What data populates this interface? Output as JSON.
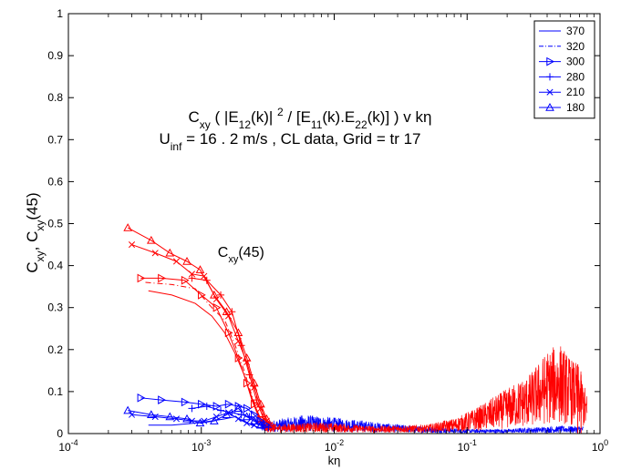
{
  "chart_data": {
    "type": "line",
    "x_scale": "log",
    "xlim": [
      0.0001,
      1
    ],
    "ylim": [
      0,
      1
    ],
    "xlabel": "kη",
    "ylabel": {
      "parts": [
        {
          "t": "C",
          "s": "n"
        },
        {
          "t": "xy",
          "s": "sub"
        },
        {
          "t": ", C",
          "s": "n"
        },
        {
          "t": "xy",
          "s": "sub"
        },
        {
          "t": "(45)",
          "s": "n"
        }
      ]
    },
    "x_ticks": [
      {
        "value": 0.0001,
        "base": "10",
        "exp": "-4"
      },
      {
        "value": 0.001,
        "base": "10",
        "exp": "-3"
      },
      {
        "value": 0.01,
        "base": "10",
        "exp": "-2"
      },
      {
        "value": 0.1,
        "base": "10",
        "exp": "-1"
      },
      {
        "value": 1,
        "base": "10",
        "exp": "0"
      }
    ],
    "y_ticks": [
      "0",
      "0.1",
      "0.2",
      "0.3",
      "0.4",
      "0.5",
      "0.6",
      "0.7",
      "0.8",
      "0.9",
      "1"
    ],
    "title_lines": [
      [
        {
          "t": "C",
          "s": "n"
        },
        {
          "t": "xy",
          "s": "sub"
        },
        {
          "t": " ( |E",
          "s": "n"
        },
        {
          "t": "12",
          "s": "sub"
        },
        {
          "t": "(k)| ",
          "s": "n"
        },
        {
          "t": "2",
          "s": "sup"
        },
        {
          "t": " / [E",
          "s": "n"
        },
        {
          "t": "11",
          "s": "sub"
        },
        {
          "t": "(k).E",
          "s": "n"
        },
        {
          "t": "22",
          "s": "sub"
        },
        {
          "t": "(k)] ) v  kη",
          "s": "n"
        }
      ],
      [
        {
          "t": "U",
          "s": "n"
        },
        {
          "t": "inf",
          "s": "sub"
        },
        {
          "t": " = 16 . 2 m/s , CL  data, Grid = tr 17",
          "s": "n"
        }
      ]
    ],
    "annotation": {
      "parts": [
        {
          "t": "C",
          "s": "n"
        },
        {
          "t": "xy",
          "s": "sub"
        },
        {
          "t": "(45)",
          "s": "n"
        }
      ],
      "x": 0.0011,
      "y": 0.43
    },
    "legend": {
      "position": "top-right",
      "entries": [
        {
          "label": "370",
          "line": "solid",
          "marker": "none"
        },
        {
          "label": "320",
          "line": "dashdot",
          "marker": "none"
        },
        {
          "label": "300",
          "line": "solid",
          "marker": "triangle-right"
        },
        {
          "label": "280",
          "line": "solid",
          "marker": "plus"
        },
        {
          "label": "210",
          "line": "solid",
          "marker": "x"
        },
        {
          "label": "180",
          "line": "solid",
          "marker": "triangle-up"
        }
      ]
    },
    "colors": {
      "cxy": "#0000ff",
      "cxy45": "#ff0000",
      "axis": "#000000"
    },
    "series": [
      {
        "group": "cxy45",
        "marker": "triangle-up",
        "x": [
          0.00028,
          0.00042,
          0.00058,
          0.00078,
          0.00098,
          0.00125,
          0.00155,
          0.0019,
          0.0022,
          0.0025,
          0.0028,
          0.0031,
          0.0034
        ],
        "y": [
          0.49,
          0.46,
          0.43,
          0.41,
          0.39,
          0.33,
          0.29,
          0.24,
          0.18,
          0.12,
          0.07,
          0.035,
          0.018
        ]
      },
      {
        "group": "cxy45",
        "marker": "x",
        "x": [
          0.0003,
          0.00045,
          0.00065,
          0.00085,
          0.00105,
          0.0013,
          0.0016,
          0.0019,
          0.0022,
          0.0025,
          0.0028,
          0.0031,
          0.0034
        ],
        "y": [
          0.45,
          0.43,
          0.41,
          0.38,
          0.375,
          0.32,
          0.28,
          0.22,
          0.17,
          0.11,
          0.06,
          0.03,
          0.015
        ]
      },
      {
        "group": "cxy45",
        "marker": "plus",
        "x": [
          0.00085,
          0.0011,
          0.0014,
          0.0017,
          0.002,
          0.0023,
          0.0026,
          0.0029,
          0.0032
        ],
        "y": [
          0.37,
          0.365,
          0.33,
          0.29,
          0.21,
          0.14,
          0.08,
          0.04,
          0.02
        ]
      },
      {
        "group": "cxy45",
        "marker": "triangle-right",
        "x": [
          0.00035,
          0.0005,
          0.00075,
          0.001,
          0.0013,
          0.0016,
          0.0019,
          0.0022,
          0.0025,
          0.0028,
          0.0031
        ],
        "y": [
          0.37,
          0.37,
          0.365,
          0.33,
          0.3,
          0.24,
          0.18,
          0.12,
          0.07,
          0.035,
          0.02
        ]
      },
      {
        "group": "cxy45",
        "marker": "none",
        "line": "dashdot",
        "x": [
          0.00038,
          0.0006,
          0.0009,
          0.0012,
          0.0015,
          0.0018,
          0.0021,
          0.0024,
          0.0027,
          0.003
        ],
        "y": [
          0.36,
          0.355,
          0.345,
          0.3,
          0.27,
          0.21,
          0.15,
          0.09,
          0.045,
          0.02
        ]
      },
      {
        "group": "cxy45",
        "marker": "none",
        "x": [
          0.0004,
          0.0006,
          0.0009,
          0.0012,
          0.0015,
          0.0018,
          0.0021,
          0.0024,
          0.0027,
          0.003
        ],
        "y": [
          0.34,
          0.33,
          0.31,
          0.28,
          0.24,
          0.19,
          0.14,
          0.08,
          0.04,
          0.02
        ]
      },
      {
        "group": "cxy",
        "marker": "triangle-right",
        "x": [
          0.00035,
          0.0005,
          0.00075,
          0.001,
          0.0013,
          0.0016,
          0.0019,
          0.0022,
          0.0025,
          0.0028,
          0.0031
        ],
        "y": [
          0.085,
          0.08,
          0.075,
          0.07,
          0.065,
          0.07,
          0.065,
          0.06,
          0.045,
          0.03,
          0.02
        ]
      },
      {
        "group": "cxy",
        "marker": "plus",
        "x": [
          0.00085,
          0.0011,
          0.0014,
          0.0017,
          0.002,
          0.0023,
          0.0026,
          0.0029,
          0.0032
        ],
        "y": [
          0.06,
          0.065,
          0.055,
          0.05,
          0.045,
          0.04,
          0.03,
          0.02,
          0.015
        ]
      },
      {
        "group": "cxy",
        "marker": "triangle-up",
        "x": [
          0.00028,
          0.00042,
          0.00058,
          0.00078,
          0.00098,
          0.00125,
          0.00155,
          0.0019,
          0.0022,
          0.0025,
          0.0028
        ],
        "y": [
          0.055,
          0.045,
          0.04,
          0.035,
          0.025,
          0.03,
          0.045,
          0.06,
          0.04,
          0.03,
          0.02
        ]
      },
      {
        "group": "cxy",
        "marker": "x",
        "x": [
          0.0003,
          0.00045,
          0.00065,
          0.00085,
          0.00105,
          0.0013,
          0.0016,
          0.0019,
          0.0022,
          0.0025
        ],
        "y": [
          0.045,
          0.04,
          0.035,
          0.03,
          0.03,
          0.04,
          0.05,
          0.035,
          0.025,
          0.02
        ]
      },
      {
        "group": "cxy",
        "marker": "none",
        "x": [
          0.0004,
          0.0006,
          0.0009,
          0.0012,
          0.0015,
          0.0018,
          0.0021,
          0.0024,
          0.0027,
          0.003
        ],
        "y": [
          0.02,
          0.02,
          0.025,
          0.03,
          0.035,
          0.04,
          0.03,
          0.02,
          0.015,
          0.012
        ]
      }
    ],
    "noise_bands": [
      {
        "group": "cxy",
        "x_range": [
          0.0028,
          0.75
        ],
        "envelope": [
          [
            0.0028,
            0.015
          ],
          [
            0.006,
            0.025
          ],
          [
            0.012,
            0.02
          ],
          [
            0.03,
            0.012
          ],
          [
            0.06,
            0.008
          ],
          [
            0.1,
            0.006
          ],
          [
            0.2,
            0.006
          ],
          [
            0.3,
            0.008
          ],
          [
            0.5,
            0.01
          ],
          [
            0.75,
            0.01
          ]
        ]
      },
      {
        "group": "cxy45",
        "x_range": [
          0.003,
          0.8
        ],
        "envelope": [
          [
            0.003,
            0.012
          ],
          [
            0.008,
            0.015
          ],
          [
            0.02,
            0.01
          ],
          [
            0.05,
            0.012
          ],
          [
            0.08,
            0.02
          ],
          [
            0.12,
            0.035
          ],
          [
            0.2,
            0.06
          ],
          [
            0.3,
            0.08
          ],
          [
            0.4,
            0.11
          ],
          [
            0.5,
            0.12
          ],
          [
            0.6,
            0.1
          ],
          [
            0.7,
            0.09
          ],
          [
            0.8,
            0.05
          ]
        ]
      }
    ],
    "spikes": [
      {
        "group": "cxy45",
        "x": 0.68,
        "y": 0.165
      },
      {
        "group": "cxy45",
        "x": 0.72,
        "y": 0.14
      }
    ]
  }
}
